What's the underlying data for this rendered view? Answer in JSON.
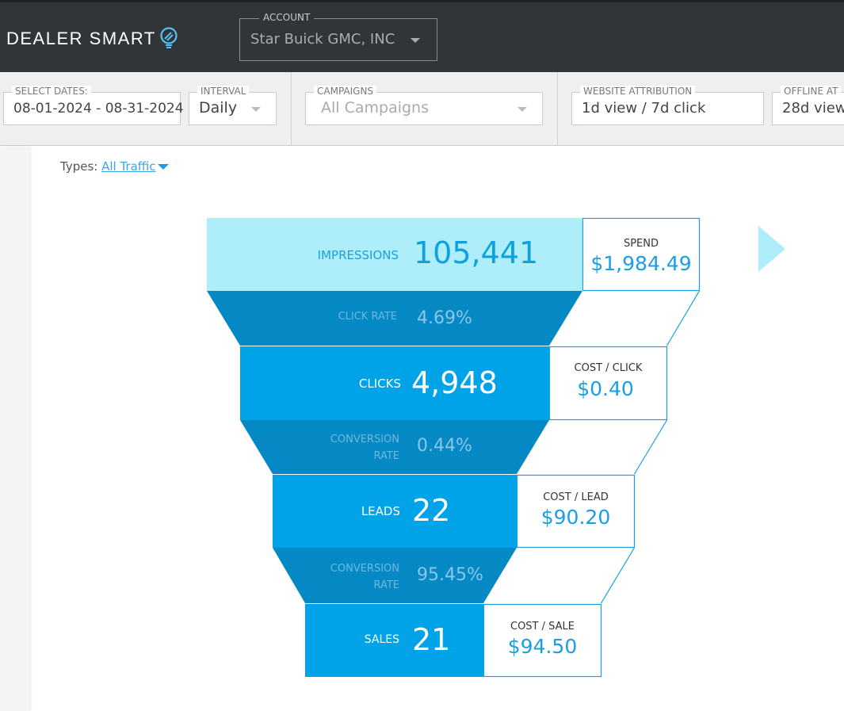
{
  "header": {
    "logo": "DEALER SMART",
    "account": {
      "label": "ACCOUNT",
      "value": "Star Buick GMC, INC"
    }
  },
  "filters": {
    "dates": {
      "label": "SELECT DATES:",
      "value": "08-01-2024 - 08-31-2024"
    },
    "interval": {
      "label": "INTERVAL",
      "value": "Daily"
    },
    "campaigns": {
      "label": "CAMPAIGNS",
      "value": "All Campaigns"
    },
    "website_attribution": {
      "label": "WEBSITE ATTRIBUTION",
      "value": "1d view / 7d click"
    },
    "offline_attribution": {
      "label": "OFFLINE AT",
      "value": "28d view"
    }
  },
  "types": {
    "label": "Types:",
    "value": "All Traffic"
  },
  "funnel": {
    "impressions": {
      "label": "IMPRESSIONS",
      "value": "105,441",
      "cost_label": "SPEND",
      "cost_value": "$1,984.49"
    },
    "click_rate": {
      "label": "CLICK RATE",
      "value": "4.69%"
    },
    "clicks": {
      "label": "CLICKS",
      "value": "4,948",
      "cost_label": "COST / CLICK",
      "cost_value": "$0.40"
    },
    "conversion_rate_1": {
      "label1": "CONVERSION",
      "label2": "RATE",
      "value": "0.44%"
    },
    "leads": {
      "label": "LEADS",
      "value": "22",
      "cost_label": "COST / LEAD",
      "cost_value": "$90.20"
    },
    "conversion_rate_2": {
      "label1": "CONVERSION",
      "label2": "RATE",
      "value": "95.45%"
    },
    "sales": {
      "label": "SALES",
      "value": "21",
      "cost_label": "COST / SALE",
      "cost_value": "$94.50"
    }
  },
  "colors": {
    "header": "#323538",
    "accent": "#00a2e8",
    "light": "#aeeefa",
    "rate": "#0589c4"
  }
}
